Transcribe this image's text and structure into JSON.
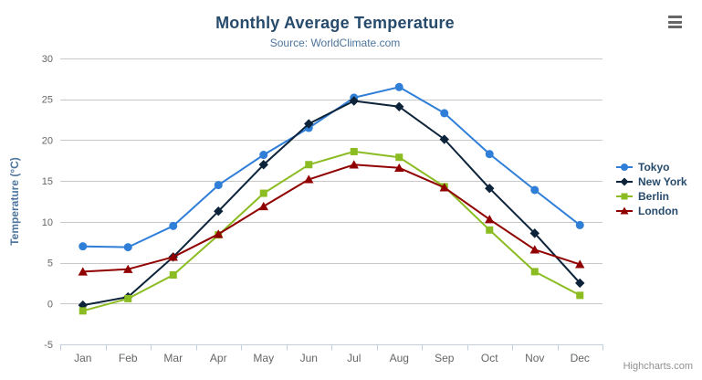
{
  "chart": {
    "title": "Monthly Average Temperature",
    "subtitle": "Source: WorldClimate.com",
    "credits": "Highcharts.com"
  },
  "chart_data": {
    "type": "line",
    "title": "Monthly Average Temperature",
    "subtitle": "Source: WorldClimate.com",
    "categories": [
      "Jan",
      "Feb",
      "Mar",
      "Apr",
      "May",
      "Jun",
      "Jul",
      "Aug",
      "Sep",
      "Oct",
      "Nov",
      "Dec"
    ],
    "series": [
      {
        "name": "Tokyo",
        "color": "#2f7ed8",
        "marker": "circle",
        "values": [
          7.0,
          6.9,
          9.5,
          14.5,
          18.2,
          21.5,
          25.2,
          26.5,
          23.3,
          18.3,
          13.9,
          9.6
        ]
      },
      {
        "name": "New York",
        "color": "#0d233a",
        "marker": "diamond",
        "values": [
          -0.2,
          0.8,
          5.7,
          11.3,
          17.0,
          22.0,
          24.8,
          24.1,
          20.1,
          14.1,
          8.6,
          2.5
        ]
      },
      {
        "name": "Berlin",
        "color": "#8bbc21",
        "marker": "square",
        "values": [
          -0.9,
          0.6,
          3.5,
          8.4,
          13.5,
          17.0,
          18.6,
          17.9,
          14.3,
          9.0,
          3.9,
          1.0
        ]
      },
      {
        "name": "London",
        "color": "#910000",
        "marker": "triangle",
        "values": [
          3.9,
          4.2,
          5.7,
          8.5,
          11.9,
          15.2,
          17.0,
          16.6,
          14.2,
          10.3,
          6.6,
          4.8
        ]
      }
    ],
    "xlabel": "",
    "ylabel": "Temperature (°C)",
    "ylim": [
      -5,
      30
    ],
    "yticks": [
      -5,
      0,
      5,
      10,
      15,
      20,
      25,
      30
    ],
    "grid": true,
    "legend_position": "right",
    "colors": {
      "grid_line": "#c8c8c8",
      "axis_line": "#c0d0e0",
      "tick_label": "#666666",
      "axis_title": "#4d759e",
      "legend_text": "#274b6d"
    }
  }
}
